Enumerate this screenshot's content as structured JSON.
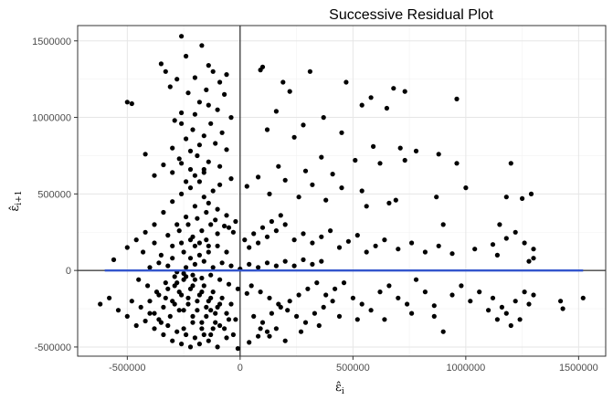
{
  "chart_data": {
    "type": "scatter",
    "title": "Successive Residual Plot",
    "xlabel": "ε̂",
    "xlabel_sub": "i",
    "ylabel": "ε̂",
    "ylabel_sub": "i+1",
    "xlim": [
      -720000,
      1620000
    ],
    "ylim": [
      -560000,
      1600000
    ],
    "x_ticks": [
      -500000,
      0,
      500000,
      1000000,
      1500000
    ],
    "x_tick_labels": [
      "-500000",
      "0",
      "500000",
      "1000000",
      "1500000"
    ],
    "y_ticks": [
      -500000,
      0,
      500000,
      1000000,
      1500000
    ],
    "y_tick_labels": [
      "-500000",
      "0",
      "500000",
      "1000000",
      "1500000"
    ],
    "grid": true,
    "reference_lines": {
      "x": 0,
      "y": 0
    },
    "fit_line": {
      "x": [
        -600000,
        1520000
      ],
      "y": [
        0,
        0
      ],
      "color": "#3355cc"
    },
    "point_color": "#000000",
    "points": [
      [
        -260000,
        1530000
      ],
      [
        -170000,
        1470000
      ],
      [
        -240000,
        1400000
      ],
      [
        -350000,
        1350000
      ],
      [
        -140000,
        1340000
      ],
      [
        -120000,
        1300000
      ],
      [
        -60000,
        1280000
      ],
      [
        -200000,
        1260000
      ],
      [
        -280000,
        1250000
      ],
      [
        -90000,
        1230000
      ],
      [
        -330000,
        1300000
      ],
      [
        -310000,
        1200000
      ],
      [
        -150000,
        1180000
      ],
      [
        -230000,
        1160000
      ],
      [
        -70000,
        1150000
      ],
      [
        -500000,
        1100000
      ],
      [
        -480000,
        1090000
      ],
      [
        -180000,
        1100000
      ],
      [
        -100000,
        1050000
      ],
      [
        -260000,
        1030000
      ],
      [
        -40000,
        1000000
      ],
      [
        -290000,
        980000
      ],
      [
        -130000,
        960000
      ],
      [
        -210000,
        920000
      ],
      [
        -80000,
        900000
      ],
      [
        -160000,
        880000
      ],
      [
        -240000,
        860000
      ],
      [
        -110000,
        830000
      ],
      [
        -300000,
        800000
      ],
      [
        -60000,
        790000
      ],
      [
        -420000,
        760000
      ],
      [
        -190000,
        750000
      ],
      [
        -270000,
        730000
      ],
      [
        -140000,
        710000
      ],
      [
        -340000,
        690000
      ],
      [
        -90000,
        680000
      ],
      [
        -220000,
        660000
      ],
      [
        -160000,
        640000
      ],
      [
        -380000,
        620000
      ],
      [
        -40000,
        600000
      ],
      [
        100000,
        1330000
      ],
      [
        90000,
        1310000
      ],
      [
        310000,
        1300000
      ],
      [
        190000,
        1230000
      ],
      [
        470000,
        1230000
      ],
      [
        220000,
        1170000
      ],
      [
        580000,
        1130000
      ],
      [
        680000,
        1190000
      ],
      [
        730000,
        1170000
      ],
      [
        960000,
        1120000
      ],
      [
        540000,
        1080000
      ],
      [
        650000,
        1060000
      ],
      [
        160000,
        1040000
      ],
      [
        370000,
        1000000
      ],
      [
        280000,
        950000
      ],
      [
        120000,
        920000
      ],
      [
        450000,
        900000
      ],
      [
        240000,
        870000
      ],
      [
        590000,
        810000
      ],
      [
        710000,
        800000
      ],
      [
        780000,
        780000
      ],
      [
        880000,
        760000
      ],
      [
        360000,
        740000
      ],
      [
        510000,
        720000
      ],
      [
        620000,
        700000
      ],
      [
        730000,
        720000
      ],
      [
        960000,
        700000
      ],
      [
        1000000,
        540000
      ],
      [
        1200000,
        700000
      ],
      [
        1290000,
        500000
      ],
      [
        170000,
        680000
      ],
      [
        290000,
        650000
      ],
      [
        410000,
        630000
      ],
      [
        80000,
        610000
      ],
      [
        200000,
        590000
      ],
      [
        320000,
        560000
      ],
      [
        450000,
        540000
      ],
      [
        540000,
        520000
      ],
      [
        690000,
        460000
      ],
      [
        870000,
        480000
      ],
      [
        1180000,
        480000
      ],
      [
        1250000,
        470000
      ],
      [
        30000,
        550000
      ],
      [
        130000,
        500000
      ],
      [
        260000,
        480000
      ],
      [
        380000,
        460000
      ],
      [
        560000,
        420000
      ],
      [
        660000,
        440000
      ],
      [
        900000,
        300000
      ],
      [
        1150000,
        300000
      ],
      [
        -560000,
        70000
      ],
      [
        -430000,
        120000
      ],
      [
        -380000,
        180000
      ],
      [
        -320000,
        230000
      ],
      [
        -280000,
        300000
      ],
      [
        -240000,
        350000
      ],
      [
        -200000,
        420000
      ],
      [
        -160000,
        480000
      ],
      [
        -120000,
        520000
      ],
      [
        -90000,
        560000
      ],
      [
        -300000,
        450000
      ],
      [
        -260000,
        500000
      ],
      [
        -220000,
        540000
      ],
      [
        -180000,
        580000
      ],
      [
        -140000,
        440000
      ],
      [
        -100000,
        400000
      ],
      [
        -60000,
        360000
      ],
      [
        -20000,
        320000
      ],
      [
        -340000,
        380000
      ],
      [
        -380000,
        300000
      ],
      [
        -420000,
        250000
      ],
      [
        -460000,
        200000
      ],
      [
        -500000,
        150000
      ],
      [
        -350000,
        100000
      ],
      [
        -300000,
        80000
      ],
      [
        -250000,
        120000
      ],
      [
        -200000,
        160000
      ],
      [
        -150000,
        200000
      ],
      [
        -100000,
        240000
      ],
      [
        -50000,
        280000
      ],
      [
        -270000,
        260000
      ],
      [
        -230000,
        300000
      ],
      [
        -190000,
        340000
      ],
      [
        -150000,
        380000
      ],
      [
        -110000,
        330000
      ],
      [
        -70000,
        290000
      ],
      [
        -30000,
        250000
      ],
      [
        -210000,
        220000
      ],
      [
        -170000,
        260000
      ],
      [
        -130000,
        300000
      ],
      [
        20000,
        200000
      ],
      [
        60000,
        240000
      ],
      [
        100000,
        280000
      ],
      [
        140000,
        320000
      ],
      [
        180000,
        360000
      ],
      [
        40000,
        150000
      ],
      [
        80000,
        180000
      ],
      [
        120000,
        220000
      ],
      [
        160000,
        260000
      ],
      [
        200000,
        300000
      ],
      [
        240000,
        200000
      ],
      [
        280000,
        240000
      ],
      [
        320000,
        180000
      ],
      [
        360000,
        220000
      ],
      [
        400000,
        260000
      ],
      [
        440000,
        150000
      ],
      [
        480000,
        190000
      ],
      [
        520000,
        230000
      ],
      [
        560000,
        120000
      ],
      [
        600000,
        160000
      ],
      [
        640000,
        200000
      ],
      [
        700000,
        140000
      ],
      [
        760000,
        180000
      ],
      [
        820000,
        120000
      ],
      [
        880000,
        160000
      ],
      [
        940000,
        110000
      ],
      [
        1040000,
        140000
      ],
      [
        1120000,
        170000
      ],
      [
        1180000,
        210000
      ],
      [
        1220000,
        250000
      ],
      [
        1260000,
        180000
      ],
      [
        1300000,
        140000
      ],
      [
        1140000,
        100000
      ],
      [
        1280000,
        60000
      ],
      [
        1300000,
        80000
      ],
      [
        -620000,
        -220000
      ],
      [
        -580000,
        -180000
      ],
      [
        -540000,
        -260000
      ],
      [
        -500000,
        -300000
      ],
      [
        -460000,
        -360000
      ],
      [
        -420000,
        -330000
      ],
      [
        -380000,
        -380000
      ],
      [
        -340000,
        -420000
      ],
      [
        -300000,
        -460000
      ],
      [
        -260000,
        -480000
      ],
      [
        -220000,
        -500000
      ],
      [
        -180000,
        -480000
      ],
      [
        -140000,
        -460000
      ],
      [
        -100000,
        -500000
      ],
      [
        -60000,
        -440000
      ],
      [
        -10000,
        -510000
      ],
      [
        40000,
        -470000
      ],
      [
        80000,
        -430000
      ],
      [
        120000,
        -400000
      ],
      [
        160000,
        -380000
      ],
      [
        -400000,
        -200000
      ],
      [
        -360000,
        -160000
      ],
      [
        -320000,
        -120000
      ],
      [
        -280000,
        -80000
      ],
      [
        -240000,
        -40000
      ],
      [
        -200000,
        -60000
      ],
      [
        -160000,
        -100000
      ],
      [
        -120000,
        -140000
      ],
      [
        -80000,
        -180000
      ],
      [
        -40000,
        -220000
      ],
      [
        -380000,
        -280000
      ],
      [
        -340000,
        -240000
      ],
      [
        -300000,
        -200000
      ],
      [
        -260000,
        -160000
      ],
      [
        -220000,
        -120000
      ],
      [
        -180000,
        -160000
      ],
      [
        -140000,
        -200000
      ],
      [
        -100000,
        -240000
      ],
      [
        -60000,
        -280000
      ],
      [
        -20000,
        -320000
      ],
      [
        -350000,
        -340000
      ],
      [
        -310000,
        -300000
      ],
      [
        -270000,
        -260000
      ],
      [
        -230000,
        -220000
      ],
      [
        -190000,
        -260000
      ],
      [
        -150000,
        -300000
      ],
      [
        -110000,
        -340000
      ],
      [
        -70000,
        -380000
      ],
      [
        -30000,
        -420000
      ],
      [
        -250000,
        -380000
      ],
      [
        -210000,
        -340000
      ],
      [
        -170000,
        -380000
      ],
      [
        -130000,
        -420000
      ],
      [
        -90000,
        -360000
      ],
      [
        -50000,
        -320000
      ],
      [
        -330000,
        -80000
      ],
      [
        -290000,
        -40000
      ],
      [
        -250000,
        -20000
      ],
      [
        -210000,
        -30000
      ],
      [
        -170000,
        -50000
      ],
      [
        -130000,
        -30000
      ],
      [
        -90000,
        -60000
      ],
      [
        -50000,
        -90000
      ],
      [
        -10000,
        -120000
      ],
      [
        30000,
        -150000
      ],
      [
        -450000,
        -60000
      ],
      [
        -410000,
        -100000
      ],
      [
        -370000,
        -140000
      ],
      [
        -330000,
        -180000
      ],
      [
        -290000,
        -220000
      ],
      [
        -250000,
        -260000
      ],
      [
        -210000,
        -300000
      ],
      [
        -170000,
        -340000
      ],
      [
        -130000,
        -260000
      ],
      [
        -90000,
        -220000
      ],
      [
        50000,
        -100000
      ],
      [
        90000,
        -140000
      ],
      [
        130000,
        -180000
      ],
      [
        170000,
        -220000
      ],
      [
        210000,
        -260000
      ],
      [
        250000,
        -300000
      ],
      [
        290000,
        -340000
      ],
      [
        330000,
        -280000
      ],
      [
        370000,
        -240000
      ],
      [
        410000,
        -200000
      ],
      [
        60000,
        -300000
      ],
      [
        100000,
        -340000
      ],
      [
        140000,
        -280000
      ],
      [
        180000,
        -240000
      ],
      [
        220000,
        -200000
      ],
      [
        260000,
        -160000
      ],
      [
        300000,
        -120000
      ],
      [
        340000,
        -80000
      ],
      [
        380000,
        -160000
      ],
      [
        420000,
        -120000
      ],
      [
        460000,
        -80000
      ],
      [
        500000,
        -180000
      ],
      [
        540000,
        -220000
      ],
      [
        580000,
        -260000
      ],
      [
        620000,
        -140000
      ],
      [
        660000,
        -100000
      ],
      [
        700000,
        -180000
      ],
      [
        740000,
        -220000
      ],
      [
        780000,
        -60000
      ],
      [
        820000,
        -140000
      ],
      [
        860000,
        -230000
      ],
      [
        900000,
        -400000
      ],
      [
        940000,
        -160000
      ],
      [
        980000,
        -100000
      ],
      [
        1020000,
        -200000
      ],
      [
        1060000,
        -140000
      ],
      [
        1100000,
        -260000
      ],
      [
        1140000,
        -320000
      ],
      [
        1180000,
        -280000
      ],
      [
        1220000,
        -200000
      ],
      [
        1260000,
        -140000
      ],
      [
        1300000,
        -160000
      ],
      [
        1280000,
        -220000
      ],
      [
        1240000,
        -320000
      ],
      [
        1200000,
        -360000
      ],
      [
        1160000,
        -240000
      ],
      [
        1120000,
        -180000
      ],
      [
        1420000,
        -200000
      ],
      [
        1430000,
        -250000
      ],
      [
        1520000,
        -180000
      ],
      [
        860000,
        -300000
      ],
      [
        760000,
        -280000
      ],
      [
        640000,
        -320000
      ],
      [
        520000,
        -320000
      ],
      [
        440000,
        -300000
      ],
      [
        350000,
        -360000
      ],
      [
        270000,
        -400000
      ],
      [
        200000,
        -460000
      ],
      [
        130000,
        -430000
      ],
      [
        90000,
        -380000
      ],
      [
        -200000,
        40000
      ],
      [
        -160000,
        60000
      ],
      [
        -120000,
        20000
      ],
      [
        -80000,
        50000
      ],
      [
        -40000,
        30000
      ],
      [
        0,
        10000
      ],
      [
        40000,
        40000
      ],
      [
        80000,
        20000
      ],
      [
        120000,
        50000
      ],
      [
        160000,
        30000
      ],
      [
        -280000,
        -10000
      ],
      [
        -240000,
        20000
      ],
      [
        -320000,
        30000
      ],
      [
        -360000,
        50000
      ],
      [
        -400000,
        20000
      ],
      [
        200000,
        60000
      ],
      [
        240000,
        30000
      ],
      [
        280000,
        70000
      ],
      [
        320000,
        40000
      ],
      [
        360000,
        60000
      ],
      [
        -190000,
        -200000
      ],
      [
        -150000,
        -240000
      ],
      [
        -110000,
        -280000
      ],
      [
        -230000,
        -180000
      ],
      [
        -270000,
        -140000
      ],
      [
        -210000,
        -100000
      ],
      [
        -170000,
        -140000
      ],
      [
        -130000,
        -180000
      ],
      [
        -250000,
        -60000
      ],
      [
        -290000,
        -100000
      ],
      [
        -160000,
        -420000
      ],
      [
        -120000,
        -380000
      ],
      [
        -200000,
        -440000
      ],
      [
        -240000,
        -420000
      ],
      [
        -280000,
        -400000
      ],
      [
        -320000,
        -360000
      ],
      [
        -360000,
        -320000
      ],
      [
        -400000,
        -280000
      ],
      [
        -440000,
        -240000
      ],
      [
        -480000,
        -200000
      ],
      [
        -140000,
        120000
      ],
      [
        -100000,
        160000
      ],
      [
        -60000,
        120000
      ],
      [
        -180000,
        100000
      ],
      [
        -220000,
        80000
      ],
      [
        -260000,
        180000
      ],
      [
        -220000,
        200000
      ],
      [
        -180000,
        180000
      ],
      [
        -140000,
        160000
      ],
      [
        -300000,
        160000
      ],
      [
        -240000,
        580000
      ],
      [
        -200000,
        620000
      ],
      [
        -160000,
        660000
      ],
      [
        -260000,
        700000
      ],
      [
        -300000,
        640000
      ],
      [
        -180000,
        820000
      ],
      [
        -220000,
        780000
      ],
      [
        -260000,
        960000
      ],
      [
        -200000,
        1020000
      ],
      [
        -140000,
        1080000
      ]
    ]
  }
}
